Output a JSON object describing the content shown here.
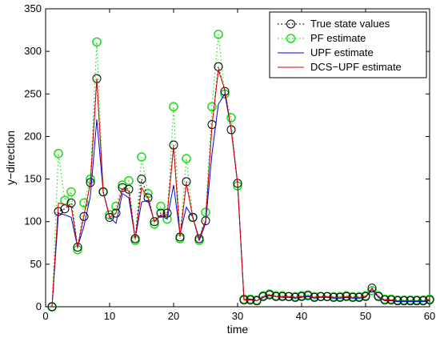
{
  "chart_data": {
    "type": "line",
    "xlabel": "time",
    "ylabel": "y−direction",
    "xlim": [
      0,
      60
    ],
    "ylim": [
      0,
      350
    ],
    "xticks": [
      0,
      10,
      20,
      30,
      40,
      50,
      60
    ],
    "yticks": [
      0,
      50,
      100,
      150,
      200,
      250,
      300,
      350
    ],
    "legend_position": "top-right",
    "series": [
      {
        "name": "True state values",
        "style": "black-circles-dotted",
        "color": "#000000",
        "x": [
          1,
          2,
          3,
          4,
          5,
          6,
          7,
          8,
          9,
          10,
          11,
          12,
          13,
          14,
          15,
          16,
          17,
          18,
          19,
          20,
          21,
          22,
          23,
          24,
          25,
          26,
          27,
          28,
          29,
          30,
          31,
          32,
          33,
          34,
          35,
          36,
          37,
          38,
          39,
          40,
          41,
          42,
          43,
          44,
          45,
          46,
          47,
          48,
          49,
          50,
          51,
          52,
          53,
          54,
          55,
          56,
          57,
          58,
          59,
          60
        ],
        "values": [
          0,
          112,
          115,
          122,
          70,
          106,
          146,
          268,
          135,
          105,
          110,
          140,
          138,
          80,
          150,
          128,
          100,
          110,
          110,
          190,
          82,
          147,
          105,
          80,
          101,
          214,
          282,
          253,
          208,
          145,
          8,
          8,
          7,
          12,
          14,
          12,
          12,
          12,
          11,
          12,
          13,
          11,
          12,
          12,
          11,
          11,
          12,
          11,
          11,
          12,
          22,
          12,
          8,
          8,
          7,
          7,
          7,
          7,
          7,
          8
        ]
      },
      {
        "name": "PF estimate",
        "style": "green-circles-dotted",
        "color": "#22dd22",
        "x": [
          1,
          2,
          3,
          4,
          5,
          6,
          7,
          8,
          9,
          10,
          11,
          12,
          13,
          14,
          15,
          16,
          17,
          18,
          19,
          20,
          21,
          22,
          23,
          24,
          25,
          26,
          27,
          28,
          29,
          30,
          31,
          32,
          33,
          34,
          35,
          36,
          37,
          38,
          39,
          40,
          41,
          42,
          43,
          44,
          45,
          46,
          47,
          48,
          49,
          50,
          51,
          52,
          53,
          54,
          55,
          56,
          57,
          58,
          59,
          60
        ],
        "values": [
          0,
          180,
          125,
          135,
          67,
          122,
          150,
          311,
          135,
          108,
          118,
          143,
          148,
          78,
          176,
          133,
          97,
          118,
          103,
          235,
          80,
          174,
          105,
          78,
          111,
          235,
          320,
          250,
          222,
          142,
          9,
          9,
          8,
          13,
          15,
          13,
          13,
          12,
          12,
          13,
          14,
          12,
          12,
          12,
          12,
          12,
          13,
          12,
          12,
          13,
          19,
          13,
          9,
          9,
          8,
          8,
          8,
          8,
          8,
          9
        ]
      },
      {
        "name": "UPF estimate",
        "style": "blue-line",
        "color": "#0000dd",
        "x": [
          1,
          2,
          3,
          4,
          5,
          6,
          7,
          8,
          9,
          10,
          11,
          12,
          13,
          14,
          15,
          16,
          17,
          18,
          19,
          20,
          21,
          22,
          23,
          24,
          25,
          26,
          27,
          28,
          29,
          30,
          31,
          32,
          33,
          34,
          35,
          36,
          37,
          38,
          39,
          40,
          41,
          42,
          43,
          44,
          45,
          46,
          47,
          48,
          49,
          50,
          51,
          52,
          53,
          54,
          55,
          56,
          57,
          58,
          59,
          60
        ],
        "values": [
          0,
          110,
          108,
          105,
          70,
          95,
          130,
          220,
          135,
          105,
          98,
          133,
          128,
          80,
          123,
          125,
          100,
          107,
          103,
          143,
          85,
          117,
          105,
          78,
          98,
          180,
          238,
          250,
          208,
          145,
          8,
          9,
          7,
          11,
          13,
          12,
          11,
          11,
          10,
          11,
          12,
          10,
          11,
          11,
          10,
          10,
          11,
          10,
          10,
          11,
          20,
          11,
          7,
          7,
          6,
          6,
          6,
          6,
          6,
          7
        ]
      },
      {
        "name": "DCS−UPF estimate",
        "style": "red-line",
        "color": "#dd0000",
        "x": [
          1,
          2,
          3,
          4,
          5,
          6,
          7,
          8,
          9,
          10,
          11,
          12,
          13,
          14,
          15,
          16,
          17,
          18,
          19,
          20,
          21,
          22,
          23,
          24,
          25,
          26,
          27,
          28,
          29,
          30,
          31,
          32,
          33,
          34,
          35,
          36,
          37,
          38,
          39,
          40,
          41,
          42,
          43,
          44,
          45,
          46,
          47,
          48,
          49,
          50,
          51,
          52,
          53,
          54,
          55,
          56,
          57,
          58,
          59,
          60
        ],
        "values": [
          0,
          122,
          120,
          118,
          70,
          108,
          145,
          268,
          135,
          105,
          110,
          138,
          136,
          80,
          140,
          128,
          100,
          108,
          108,
          188,
          82,
          145,
          105,
          80,
          101,
          213,
          278,
          255,
          208,
          145,
          8,
          8,
          7,
          12,
          14,
          12,
          12,
          12,
          11,
          12,
          13,
          11,
          12,
          12,
          11,
          11,
          12,
          11,
          11,
          12,
          22,
          12,
          8,
          8,
          7,
          7,
          7,
          7,
          7,
          8
        ]
      }
    ]
  }
}
